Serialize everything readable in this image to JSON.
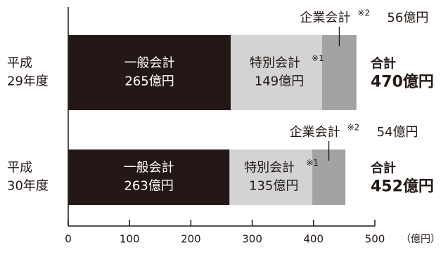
{
  "chart_data": {
    "type": "bar",
    "orientation": "horizontal",
    "stacked": true,
    "unit_label": "（億円）",
    "xlim": [
      0,
      500
    ],
    "x_ticks": [
      0,
      100,
      200,
      300,
      400,
      500
    ],
    "x_tick_labels": [
      "0",
      "100",
      "200",
      "300",
      "400",
      "500"
    ],
    "grid": false,
    "rows": [
      {
        "label_line1": "平成",
        "label_line2": "29年度",
        "segments": [
          {
            "name": "一般会計",
            "value": 265,
            "value_label": "265億円",
            "note": ""
          },
          {
            "name": "特別会計",
            "value": 149,
            "value_label": "149億円",
            "note": "※1"
          },
          {
            "name": "企業会計",
            "value": 56,
            "value_label": "56億円",
            "note": "※2"
          }
        ],
        "total_label": "合計",
        "total_value": 470,
        "total_value_label": "470億円"
      },
      {
        "label_line1": "平成",
        "label_line2": "30年度",
        "segments": [
          {
            "name": "一般会計",
            "value": 263,
            "value_label": "263億円",
            "note": ""
          },
          {
            "name": "特別会計",
            "value": 135,
            "value_label": "135億円",
            "note": "※1"
          },
          {
            "name": "企業会計",
            "value": 54,
            "value_label": "54億円",
            "note": "※2"
          }
        ],
        "total_label": "合計",
        "total_value": 452,
        "total_value_label": "452億円"
      }
    ],
    "colors": {
      "general": "#231815",
      "special": "#d3d3d3",
      "enterprise": "#a3a3a3",
      "text_dark": "#231815",
      "text_on_dark": "#ffffff",
      "axis": "#231815"
    }
  }
}
